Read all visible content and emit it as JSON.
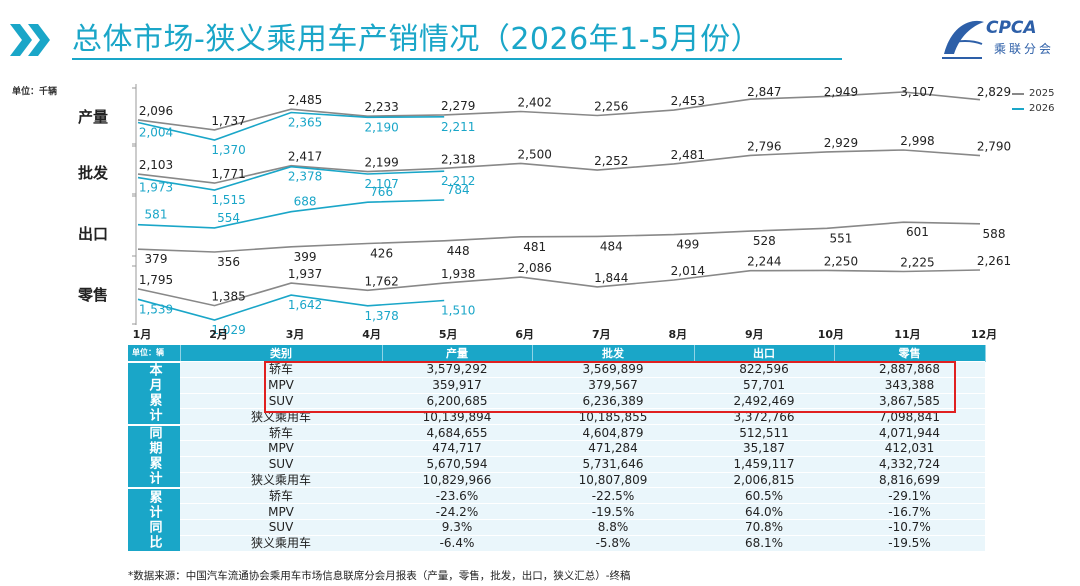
{
  "header": {
    "title": "总体市场-狭义乘用车产销情况（2026年1-5月份）",
    "logo_text": "CPCA",
    "logo_sub": "乘联分会",
    "accent": "#1aa6c8"
  },
  "chart_data": {
    "type": "line",
    "unit_label": "单位：千辆",
    "months": [
      "1月",
      "2月",
      "3月",
      "4月",
      "5月",
      "6月",
      "7月",
      "8月",
      "9月",
      "10月",
      "11月",
      "12月"
    ],
    "legend": [
      {
        "name": "2025",
        "color": "#888888"
      },
      {
        "name": "2026",
        "color": "#1aa6c8"
      }
    ],
    "panels": [
      {
        "label": "产量",
        "series": [
          {
            "name": "2025",
            "labels": [
              "2,096",
              "1,737",
              "2,485",
              "2,233",
              "2,279",
              "2,402",
              "2,256",
              "2,453",
              "2,847",
              "2,949",
              "3,107",
              "2,829"
            ],
            "values": [
              2096,
              1737,
              2485,
              2233,
              2279,
              2402,
              2256,
              2453,
              2847,
              2949,
              3107,
              2829
            ]
          },
          {
            "name": "2026",
            "labels": [
              "2,004",
              "1,370",
              "2,365",
              "2,190",
              "2,211"
            ],
            "values": [
              2004,
              1370,
              2365,
              2190,
              2211
            ]
          }
        ]
      },
      {
        "label": "批发",
        "series": [
          {
            "name": "2025",
            "labels": [
              "2,103",
              "1,771",
              "2,417",
              "2,199",
              "2,318",
              "2,500",
              "2,252",
              "2,481",
              "2,796",
              "2,929",
              "2,998",
              "2,790"
            ],
            "values": [
              2103,
              1771,
              2417,
              2199,
              2318,
              2500,
              2252,
              2481,
              2796,
              2929,
              2998,
              2790
            ]
          },
          {
            "name": "2026",
            "labels": [
              "1,973",
              "1,515",
              "2,378",
              "2,107",
              "2,212"
            ],
            "values": [
              1973,
              1515,
              2378,
              2107,
              2212
            ]
          }
        ]
      },
      {
        "label": "出口",
        "series": [
          {
            "name": "2025",
            "labels": [
              "379",
              "356",
              "399",
              "426",
              "448",
              "481",
              "484",
              "499",
              "528",
              "551",
              "601",
              "588"
            ],
            "values": [
              379,
              356,
              399,
              426,
              448,
              481,
              484,
              499,
              528,
              551,
              601,
              588
            ]
          },
          {
            "name": "2026",
            "labels": [
              "581",
              "554",
              "688",
              "766",
              "784"
            ],
            "values": [
              581,
              554,
              688,
              766,
              784
            ]
          }
        ]
      },
      {
        "label": "零售",
        "series": [
          {
            "name": "2025",
            "labels": [
              "1,795",
              "1,385",
              "1,937",
              "1,762",
              "1,938",
              "2,086",
              "1,844",
              "2,014",
              "2,244",
              "2,250",
              "2,225",
              "2,261"
            ],
            "values": [
              1795,
              1385,
              1937,
              1762,
              1938,
              2086,
              1844,
              2014,
              2244,
              2250,
              2225,
              2261
            ]
          },
          {
            "name": "2026",
            "labels": [
              "1,539",
              "1,029",
              "1,642",
              "1,378",
              "1,510"
            ],
            "values": [
              1539,
              1029,
              1642,
              1378,
              1510
            ]
          }
        ]
      }
    ]
  },
  "table": {
    "unit": "单位：辆",
    "headers": [
      "类别",
      "产量",
      "批发",
      "出口",
      "零售"
    ],
    "groups": [
      {
        "name": "本月累计",
        "rows": [
          [
            "轿车",
            "3,579,292",
            "3,569,899",
            "822,596",
            "2,887,868"
          ],
          [
            "MPV",
            "359,917",
            "379,567",
            "57,701",
            "343,388"
          ],
          [
            "SUV",
            "6,200,685",
            "6,236,389",
            "2,492,469",
            "3,867,585"
          ],
          [
            "狭义乘用车",
            "10,139,894",
            "10,185,855",
            "3,372,766",
            "7,098,841"
          ]
        ]
      },
      {
        "name": "同期累计",
        "rows": [
          [
            "轿车",
            "4,684,655",
            "4,604,879",
            "512,511",
            "4,071,944"
          ],
          [
            "MPV",
            "474,717",
            "471,284",
            "35,187",
            "412,031"
          ],
          [
            "SUV",
            "5,670,594",
            "5,731,646",
            "1,459,117",
            "4,332,724"
          ],
          [
            "狭义乘用车",
            "10,829,966",
            "10,807,809",
            "2,006,815",
            "8,816,699"
          ]
        ]
      },
      {
        "name": "累计同比",
        "rows": [
          [
            "轿车",
            "-23.6%",
            "-22.5%",
            "60.5%",
            "-29.1%"
          ],
          [
            "MPV",
            "-24.2%",
            "-19.5%",
            "64.0%",
            "-16.7%"
          ],
          [
            "SUV",
            "9.3%",
            "8.8%",
            "70.8%",
            "-10.7%"
          ],
          [
            "狭义乘用车",
            "-6.4%",
            "-5.8%",
            "68.1%",
            "-19.5%"
          ]
        ]
      }
    ]
  },
  "footer": {
    "source": "*数据来源：中国汽车流通协会乘用车市场信息联席分会月报表（产量，零售，批发，出口，狭义汇总）-终稿"
  }
}
